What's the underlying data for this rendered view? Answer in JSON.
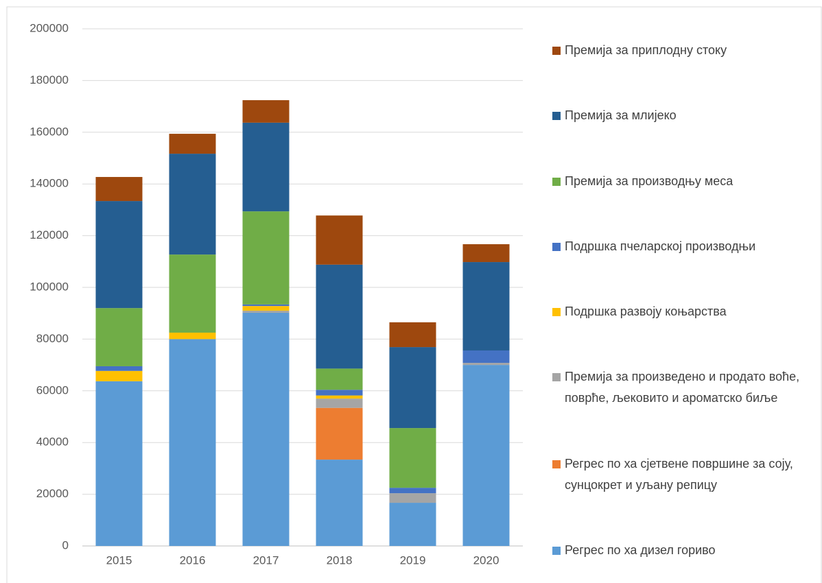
{
  "chart_data": {
    "type": "stacked_bar",
    "categories": [
      "2015",
      "2016",
      "2017",
      "2018",
      "2019",
      "2020"
    ],
    "series": [
      {
        "name": "Регрес по ха дизел гориво",
        "color": "#5b9bd5",
        "values": [
          63700,
          80000,
          90200,
          33400,
          16700,
          70000
        ]
      },
      {
        "name": "Регрес по ха сјетвене површине за соју, сунцокрет и уљану репицу",
        "color": "#ed7d31",
        "values": [
          0,
          0,
          0,
          20000,
          0,
          0
        ]
      },
      {
        "name": "Премија за произведено и продато воће, поврће, љековито и ароматско биље",
        "color": "#a5a5a5",
        "values": [
          0,
          0,
          800,
          3600,
          3700,
          800
        ]
      },
      {
        "name": "Подршка развоју коњарства",
        "color": "#ffc000",
        "values": [
          4000,
          2500,
          1800,
          1200,
          0,
          0
        ]
      },
      {
        "name": "Подршка пчеларској производњи",
        "color": "#4472c4",
        "values": [
          1800,
          0,
          600,
          2200,
          2100,
          4800
        ]
      },
      {
        "name": "Премија за производњу меса",
        "color": "#70ad47",
        "values": [
          22500,
          30200,
          36000,
          8200,
          23100,
          0
        ]
      },
      {
        "name": "Премија за млијеко",
        "color": "#255e91",
        "values": [
          41400,
          39000,
          34300,
          40200,
          31300,
          34200
        ]
      },
      {
        "name": "Премија за приплодну стоку",
        "color": "#9e480e",
        "values": [
          9300,
          7700,
          8700,
          19000,
          9600,
          6900
        ]
      }
    ],
    "ylim": [
      0,
      200000
    ],
    "yticks": [
      0,
      20000,
      40000,
      60000,
      80000,
      100000,
      120000,
      140000,
      160000,
      180000,
      200000
    ],
    "grid": true,
    "legend": "right"
  }
}
